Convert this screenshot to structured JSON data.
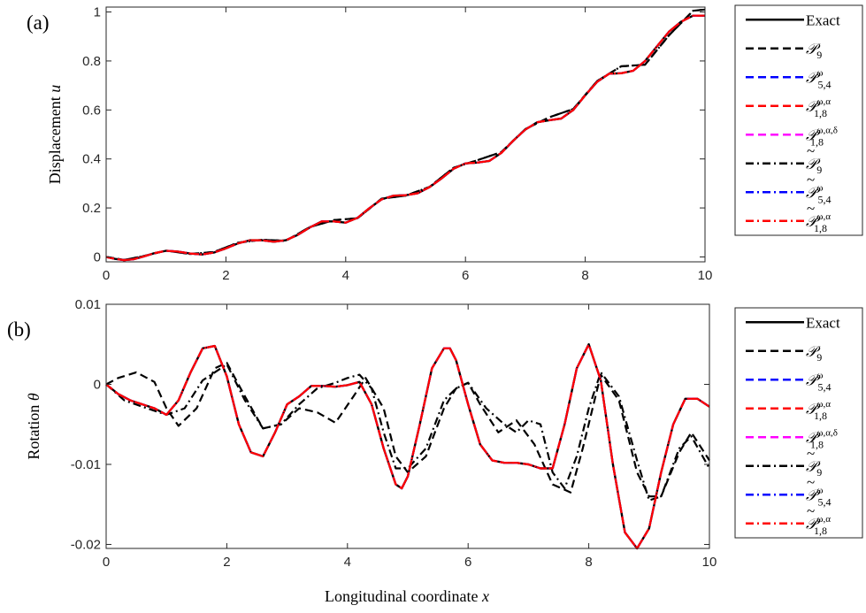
{
  "chart_data": [
    {
      "panel": "(a)",
      "type": "line",
      "xlabel": "",
      "ylabel": "Displacement u",
      "xlim": [
        0,
        10
      ],
      "ylim": [
        -0.02,
        1.02
      ],
      "xticks": [
        "0",
        "2",
        "4",
        "6",
        "8",
        "10"
      ],
      "yticks": [
        "0",
        "0.2",
        "0.4",
        "0.6",
        "0.8",
        "1"
      ],
      "grid": false,
      "legend_position": "outside-right",
      "series": [
        {
          "name": "Exact",
          "color": "#000000",
          "style": "solid",
          "x": [
            0,
            0.15,
            0.3,
            0.45,
            0.6,
            0.8,
            1.0,
            1.2,
            1.4,
            1.6,
            1.8,
            2.0,
            2.2,
            2.4,
            2.6,
            2.8,
            3.0,
            3.2,
            3.4,
            3.6,
            3.8,
            4.0,
            4.2,
            4.4,
            4.6,
            4.8,
            5.0,
            5.2,
            5.4,
            5.6,
            5.8,
            6.0,
            6.2,
            6.4,
            6.6,
            6.8,
            7.0,
            7.2,
            7.4,
            7.6,
            7.8,
            8.0,
            8.2,
            8.4,
            8.6,
            8.8,
            9.0,
            9.2,
            9.4,
            9.6,
            9.8,
            10.0
          ],
          "y": [
            0,
            -0.008,
            -0.013,
            -0.01,
            0.0,
            0.015,
            0.025,
            0.022,
            0.014,
            0.01,
            0.018,
            0.035,
            0.055,
            0.068,
            0.068,
            0.062,
            0.068,
            0.09,
            0.12,
            0.145,
            0.145,
            0.14,
            0.16,
            0.2,
            0.235,
            0.25,
            0.252,
            0.26,
            0.285,
            0.32,
            0.36,
            0.382,
            0.385,
            0.392,
            0.425,
            0.475,
            0.52,
            0.55,
            0.558,
            0.565,
            0.6,
            0.66,
            0.715,
            0.748,
            0.75,
            0.76,
            0.8,
            0.86,
            0.92,
            0.96,
            0.985,
            0.985
          ]
        },
        {
          "name": "P9",
          "color": "#000000",
          "style": "dash",
          "x": [
            0,
            0.3,
            0.6,
            1.0,
            1.4,
            1.8,
            2.2,
            2.6,
            3.0,
            3.4,
            3.8,
            4.2,
            4.6,
            5.0,
            5.4,
            5.8,
            6.2,
            6.6,
            7.0,
            7.4,
            7.8,
            8.2,
            8.6,
            9.0,
            9.4,
            9.8,
            10.0
          ],
          "y": [
            0,
            -0.012,
            0.002,
            0.026,
            0.012,
            0.02,
            0.058,
            0.07,
            0.066,
            0.122,
            0.15,
            0.158,
            0.238,
            0.25,
            0.286,
            0.364,
            0.395,
            0.428,
            0.522,
            0.57,
            0.604,
            0.718,
            0.778,
            0.785,
            0.905,
            1.005,
            1.01
          ]
        },
        {
          "name": "P5,4 ω",
          "color": "#0000ff",
          "style": "dash",
          "ref": "Exact"
        },
        {
          "name": "P1,8 ω,α",
          "color": "#ff0000",
          "style": "dash",
          "ref": "Exact"
        },
        {
          "name": "P1,8 ω,α,δ",
          "color": "#ff00ff",
          "style": "dash",
          "ref": "Exact"
        },
        {
          "name": "P̃9",
          "color": "#000000",
          "style": "dashdot",
          "ref": "P9"
        },
        {
          "name": "P̃5,4 ω",
          "color": "#0000ff",
          "style": "dashdot",
          "ref": "Exact"
        },
        {
          "name": "P̃1,8 ω,α",
          "color": "#ff0000",
          "style": "dashdot",
          "ref": "Exact"
        }
      ]
    },
    {
      "panel": "(b)",
      "type": "line",
      "xlabel": "Longitudinal coordinate x",
      "ylabel": "Rotation θ",
      "xlim": [
        0,
        10
      ],
      "ylim": [
        -0.0205,
        0.01
      ],
      "xticks": [
        "0",
        "2",
        "4",
        "6",
        "8",
        "10"
      ],
      "yticks": [
        "-0.02",
        "-0.01",
        "0",
        "0.01"
      ],
      "grid": false,
      "legend_position": "outside-right",
      "series": [
        {
          "name": "Exact",
          "color": "#000000",
          "style": "solid",
          "x": [
            0,
            0.2,
            0.4,
            0.6,
            0.8,
            1.0,
            1.2,
            1.4,
            1.6,
            1.8,
            2.0,
            2.2,
            2.4,
            2.6,
            2.8,
            3.0,
            3.2,
            3.4,
            3.6,
            3.8,
            4.0,
            4.2,
            4.4,
            4.6,
            4.8,
            4.9,
            5.0,
            5.2,
            5.4,
            5.6,
            5.7,
            5.8,
            6.0,
            6.2,
            6.4,
            6.6,
            6.8,
            7.0,
            7.2,
            7.4,
            7.6,
            7.8,
            8.0,
            8.2,
            8.4,
            8.6,
            8.8,
            9.0,
            9.2,
            9.4,
            9.6,
            9.8,
            10.0
          ],
          "y": [
            0,
            -0.0012,
            -0.002,
            -0.0025,
            -0.003,
            -0.0038,
            -0.002,
            0.0015,
            0.0045,
            0.0048,
            0.001,
            -0.005,
            -0.0085,
            -0.009,
            -0.006,
            -0.0025,
            -0.0015,
            -0.0002,
            -0.0002,
            -0.0003,
            -0.0001,
            0.0003,
            -0.0025,
            -0.008,
            -0.0125,
            -0.013,
            -0.0115,
            -0.005,
            0.002,
            0.0045,
            0.0045,
            0.003,
            -0.0025,
            -0.0075,
            -0.0095,
            -0.0098,
            -0.0098,
            -0.01,
            -0.0105,
            -0.0105,
            -0.005,
            0.002,
            0.005,
            0.0005,
            -0.01,
            -0.0185,
            -0.0205,
            -0.018,
            -0.011,
            -0.005,
            -0.0018,
            -0.0018,
            -0.0028
          ]
        },
        {
          "name": "P9",
          "color": "#000000",
          "style": "dash",
          "x": [
            0,
            0.2,
            0.5,
            0.8,
            1.0,
            1.2,
            1.5,
            1.8,
            2.0,
            2.3,
            2.6,
            2.9,
            3.2,
            3.5,
            3.8,
            4.1,
            4.3,
            4.6,
            4.8,
            5.0,
            5.3,
            5.6,
            5.8,
            6.0,
            6.2,
            6.5,
            6.8,
            7.1,
            7.4,
            7.7,
            7.9,
            8.2,
            8.5,
            8.8,
            9.0,
            9.2,
            9.5,
            9.7,
            10.0
          ],
          "y": [
            0,
            0.0008,
            0.0015,
            0.0003,
            -0.003,
            -0.0052,
            -0.003,
            0.002,
            0.0027,
            -0.0015,
            -0.0055,
            -0.005,
            -0.003,
            -0.0035,
            -0.0048,
            -0.0015,
            0.0008,
            -0.003,
            -0.009,
            -0.011,
            -0.009,
            -0.003,
            -0.0005,
            0.0002,
            -0.0025,
            -0.006,
            -0.0045,
            -0.0075,
            -0.0125,
            -0.0135,
            -0.008,
            0.0012,
            -0.002,
            -0.011,
            -0.014,
            -0.014,
            -0.0085,
            -0.006,
            -0.0095
          ]
        },
        {
          "name": "P5,4 ω",
          "color": "#0000ff",
          "style": "dash",
          "ref": "Exact"
        },
        {
          "name": "P1,8 ω,α",
          "color": "#ff0000",
          "style": "dash",
          "ref": "Exact"
        },
        {
          "name": "P1,8 ω,α,δ",
          "color": "#ff00ff",
          "style": "dash",
          "ref": "Exact"
        },
        {
          "name": "P̃9",
          "color": "#000000",
          "style": "dashdot",
          "x": [
            0,
            0.3,
            0.6,
            1.0,
            1.3,
            1.6,
            2.0,
            2.3,
            2.6,
            2.9,
            3.2,
            3.5,
            3.8,
            4.0,
            4.2,
            4.4,
            4.6,
            4.8,
            5.0,
            5.3,
            5.6,
            5.8,
            6.0,
            6.3,
            6.6,
            6.8,
            7.0,
            7.2,
            7.4,
            7.6,
            7.8,
            8.0,
            8.2,
            8.5,
            8.8,
            9.0,
            9.2,
            9.5,
            9.7,
            10.0
          ],
          "y": [
            0,
            -0.002,
            -0.0028,
            -0.0038,
            -0.003,
            0.0005,
            0.0025,
            -0.002,
            -0.0055,
            -0.005,
            -0.0025,
            -0.0005,
            0.0002,
            0.0008,
            0.0012,
            -0.0005,
            -0.006,
            -0.0105,
            -0.0105,
            -0.008,
            -0.002,
            -0.0005,
            0.0002,
            -0.003,
            -0.005,
            -0.006,
            -0.0045,
            -0.005,
            -0.011,
            -0.013,
            -0.009,
            -0.003,
            0.0015,
            -0.0015,
            -0.0095,
            -0.0145,
            -0.014,
            -0.008,
            -0.0065,
            -0.0105
          ]
        },
        {
          "name": "P̃5,4 ω",
          "color": "#0000ff",
          "style": "dashdot",
          "ref": "Exact"
        },
        {
          "name": "P̃1,8 ω,α",
          "color": "#ff0000",
          "style": "dashdot",
          "ref": "Exact"
        }
      ]
    }
  ],
  "panels": {
    "a": {
      "tag": "(a)",
      "ylabel_main": "Displacement ",
      "ylabel_var": "u"
    },
    "b": {
      "tag": "(b)",
      "ylabel_main": "Rotation ",
      "ylabel_var": "θ"
    }
  },
  "xlabel_main": "Longitudinal coordinate ",
  "xlabel_var": "x",
  "legend": [
    {
      "base": "Exact",
      "sub": "",
      "sup": "",
      "tilde": false,
      "color": "#000000",
      "style": "solid"
    },
    {
      "base": "𝒫",
      "sub": "9",
      "sup": "",
      "tilde": false,
      "color": "#000000",
      "style": "dash"
    },
    {
      "base": "𝒫",
      "sub": "5,4",
      "sup": "ω",
      "tilde": false,
      "color": "#0000ff",
      "style": "dash"
    },
    {
      "base": "𝒫",
      "sub": "1,8",
      "sup": "ω,α",
      "tilde": false,
      "color": "#ff0000",
      "style": "dash"
    },
    {
      "base": "𝒫",
      "sub": "1,8",
      "sup": "ω,α,δ",
      "tilde": false,
      "color": "#ff00ff",
      "style": "dash"
    },
    {
      "base": "𝒫",
      "sub": "9",
      "sup": "",
      "tilde": true,
      "color": "#000000",
      "style": "dashdot"
    },
    {
      "base": "𝒫",
      "sub": "5,4",
      "sup": "ω",
      "tilde": true,
      "color": "#0000ff",
      "style": "dashdot"
    },
    {
      "base": "𝒫",
      "sub": "1,8",
      "sup": "ω,α",
      "tilde": true,
      "color": "#ff0000",
      "style": "dashdot"
    }
  ],
  "tilde_char": "~"
}
